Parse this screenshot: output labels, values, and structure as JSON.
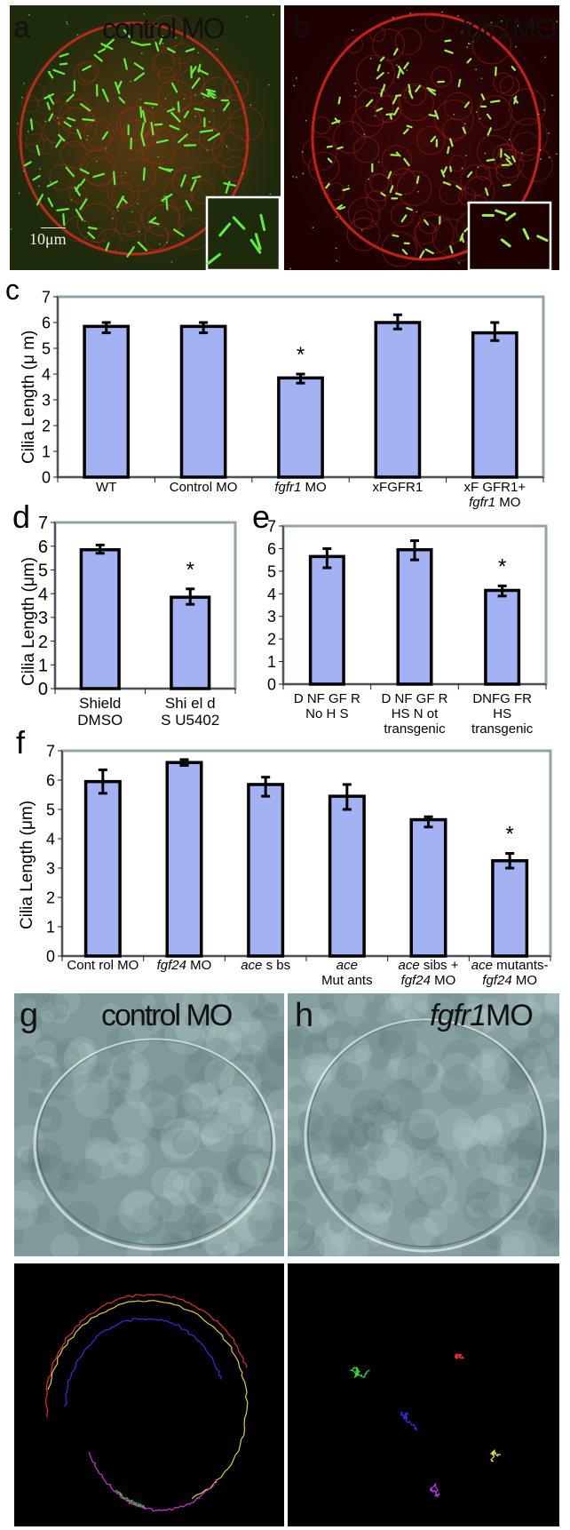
{
  "figure": {
    "panels": {
      "a": {
        "letter": "a",
        "title": "control MO",
        "scale_bar": "10μm",
        "type": "fluorescence-image"
      },
      "b": {
        "letter": "b",
        "title_italic": "fgfr1",
        "title_suffix": "MO",
        "type": "fluorescence-image"
      },
      "g": {
        "letter": "g",
        "title": "control MO",
        "type": "brightfield-image"
      },
      "h": {
        "letter": "h",
        "title_italic": "fgfr1",
        "title_suffix": "MO",
        "type": "brightfield-image"
      },
      "g_tracks": {
        "type": "bead-tracking-image",
        "colors": [
          "#e03030",
          "#e0d030",
          "#3030e0",
          "#30c030",
          "#d030d0"
        ]
      },
      "h_tracks": {
        "type": "bead-tracking-image",
        "colors": [
          "#30e030",
          "#e03030",
          "#3030e0",
          "#e0e030",
          "#c030e0"
        ]
      }
    },
    "colors": {
      "bar_fill": "#a3b2f2",
      "bar_stroke": "#000000",
      "frame": "#91a4a8",
      "cilia_green": "#5ef03a",
      "membrane_red": "#c8201a"
    }
  },
  "chart_data": [
    {
      "id": "c",
      "letter": "c",
      "type": "bar",
      "title": "",
      "xlabel": "",
      "ylabel": "Cilia Length (μ m)",
      "ylim": [
        0,
        7
      ],
      "yticks": [
        "0",
        "1",
        "2",
        "3",
        "4",
        "5",
        "6",
        "7"
      ],
      "grid": false,
      "categories": [
        {
          "lines": [
            [
              {
                "t": "WT"
              }
            ]
          ]
        },
        {
          "lines": [
            [
              {
                "t": "Control MO"
              }
            ]
          ]
        },
        {
          "lines": [
            [
              {
                "t": "fgfr1",
                "i": true
              },
              {
                "t": " MO"
              }
            ]
          ]
        },
        {
          "lines": [
            [
              {
                "t": "xFGFR1"
              }
            ]
          ]
        },
        {
          "lines": [
            [
              {
                "t": "xF GFR1+"
              }
            ],
            [
              {
                "t": "fgfr1",
                "i": true
              },
              {
                "t": "  MO"
              }
            ]
          ]
        }
      ],
      "values": [
        5.85,
        5.85,
        3.85,
        6.0,
        5.6
      ],
      "error_low": [
        5.6,
        5.6,
        3.65,
        5.75,
        5.3
      ],
      "error_high": [
        6.0,
        6.0,
        4.0,
        6.3,
        6.0
      ],
      "significance": [
        "",
        "",
        "*",
        "",
        ""
      ]
    },
    {
      "id": "d",
      "letter": "d",
      "type": "bar",
      "title": "",
      "xlabel": "",
      "ylabel": "Cilia Length (μm)",
      "ylim": [
        0,
        7
      ],
      "yticks": [
        "0",
        "1",
        "2",
        "3",
        "4",
        "5",
        "6",
        "7"
      ],
      "grid": false,
      "categories": [
        {
          "lines": [
            [
              {
                "t": "Shield"
              }
            ],
            [
              {
                "t": "DMSO"
              }
            ]
          ]
        },
        {
          "lines": [
            [
              {
                "t": "Shi el d"
              }
            ],
            [
              {
                "t": "S U5402"
              }
            ]
          ]
        }
      ],
      "values": [
        5.85,
        3.85
      ],
      "error_low": [
        5.7,
        3.55
      ],
      "error_high": [
        6.05,
        4.2
      ],
      "significance": [
        "",
        "*"
      ]
    },
    {
      "id": "e",
      "letter": "e",
      "type": "bar",
      "title": "",
      "xlabel": "",
      "ylabel": "",
      "ylim": [
        0,
        7
      ],
      "yticks": [
        "0",
        "1",
        "2",
        "3",
        "4",
        "5",
        "6",
        "7"
      ],
      "grid": false,
      "categories": [
        {
          "lines": [
            [
              {
                "t": "D NF GF R"
              }
            ],
            [
              {
                "t": "No H S"
              }
            ]
          ]
        },
        {
          "lines": [
            [
              {
                "t": "D NF GF R"
              }
            ],
            [
              {
                "t": "HS N ot"
              }
            ],
            [
              {
                "t": "transgenic"
              }
            ]
          ]
        },
        {
          "lines": [
            [
              {
                "t": "DNFG FR"
              }
            ],
            [
              {
                "t": "HS"
              }
            ],
            [
              {
                "t": "transgenic"
              }
            ]
          ]
        }
      ],
      "values": [
        5.65,
        5.95,
        4.15
      ],
      "error_low": [
        5.15,
        5.5,
        3.9
      ],
      "error_high": [
        6.0,
        6.35,
        4.35
      ],
      "significance": [
        "",
        "",
        "*"
      ]
    },
    {
      "id": "f",
      "letter": "f",
      "type": "bar",
      "title": "",
      "xlabel": "",
      "ylabel": "Cilia Length (μm)",
      "ylim": [
        0,
        7
      ],
      "yticks": [
        "0",
        "1",
        "2",
        "3",
        "4",
        "5",
        "6",
        "7"
      ],
      "grid": false,
      "categories": [
        {
          "lines": [
            [
              {
                "t": "Cont rol MO"
              }
            ]
          ]
        },
        {
          "lines": [
            [
              {
                "t": "fgf24",
                "i": true
              },
              {
                "t": " MO"
              }
            ]
          ]
        },
        {
          "lines": [
            [
              {
                "t": "ace",
                "i": true
              },
              {
                "t": " s bs"
              }
            ]
          ]
        },
        {
          "lines": [
            [
              {
                "t": "ace",
                "i": true
              }
            ],
            [
              {
                "t": "Mut ants"
              }
            ]
          ]
        },
        {
          "lines": [
            [
              {
                "t": "ace",
                "i": true
              },
              {
                "t": " sibs +"
              }
            ],
            [
              {
                "t": "fgf24",
                "i": true
              },
              {
                "t": " MO"
              }
            ]
          ]
        },
        {
          "lines": [
            [
              {
                "t": "ace",
                "i": true
              },
              {
                "t": " mutants-"
              }
            ],
            [
              {
                "t": "fgf24",
                "i": true
              },
              {
                "t": " MO"
              }
            ]
          ]
        }
      ],
      "values": [
        5.95,
        6.6,
        5.85,
        5.45,
        4.65,
        3.25
      ],
      "error_low": [
        5.55,
        6.5,
        5.45,
        5.0,
        4.4,
        3.0
      ],
      "error_high": [
        6.35,
        6.7,
        6.1,
        5.85,
        4.75,
        3.5
      ],
      "significance": [
        "",
        "",
        "",
        "",
        "",
        "*"
      ]
    }
  ]
}
